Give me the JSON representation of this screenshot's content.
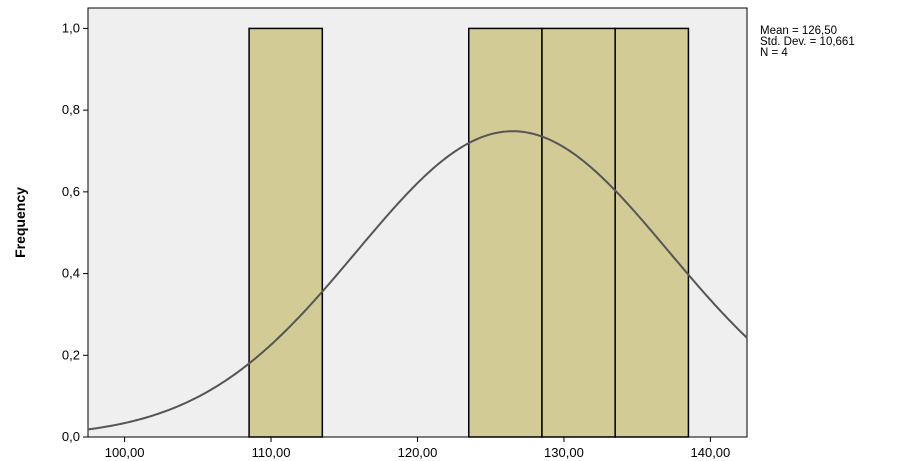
{
  "chart_data": {
    "type": "bar",
    "subtype": "histogram",
    "bins": [
      {
        "start": 108.5,
        "end": 113.5,
        "count": 1
      },
      {
        "start": 123.5,
        "end": 128.5,
        "count": 1
      },
      {
        "start": 128.5,
        "end": 133.5,
        "count": 1
      },
      {
        "start": 133.5,
        "end": 138.5,
        "count": 1
      }
    ],
    "normal_curve": {
      "mean": 126.5,
      "std_dev": 10.661,
      "n": 4,
      "bin_width": 5
    },
    "xlim": [
      97.5,
      142.5
    ],
    "ylim": [
      0,
      1.05
    ],
    "x_ticks": [
      100,
      110,
      120,
      130,
      140
    ],
    "x_tick_labels": [
      "100,00",
      "110,00",
      "120,00",
      "130,00",
      "140,00"
    ],
    "y_ticks": [
      0,
      0.2,
      0.4,
      0.6,
      0.8,
      1.0
    ],
    "y_tick_labels": [
      "0,0",
      "0,2",
      "0,4",
      "0,6",
      "0,8",
      "1,0"
    ],
    "title": "",
    "xlabel": "",
    "ylabel": "Frequency",
    "grid": false,
    "legend": {
      "mean_label": "Mean = 126,50",
      "std_label": "Std. Dev. = 10,661",
      "n_label": "N = 4"
    },
    "colors": {
      "plot_background": "#efefef",
      "bar_fill": "#d2cb96",
      "bar_stroke": "#000000",
      "curve": "#555555"
    }
  }
}
